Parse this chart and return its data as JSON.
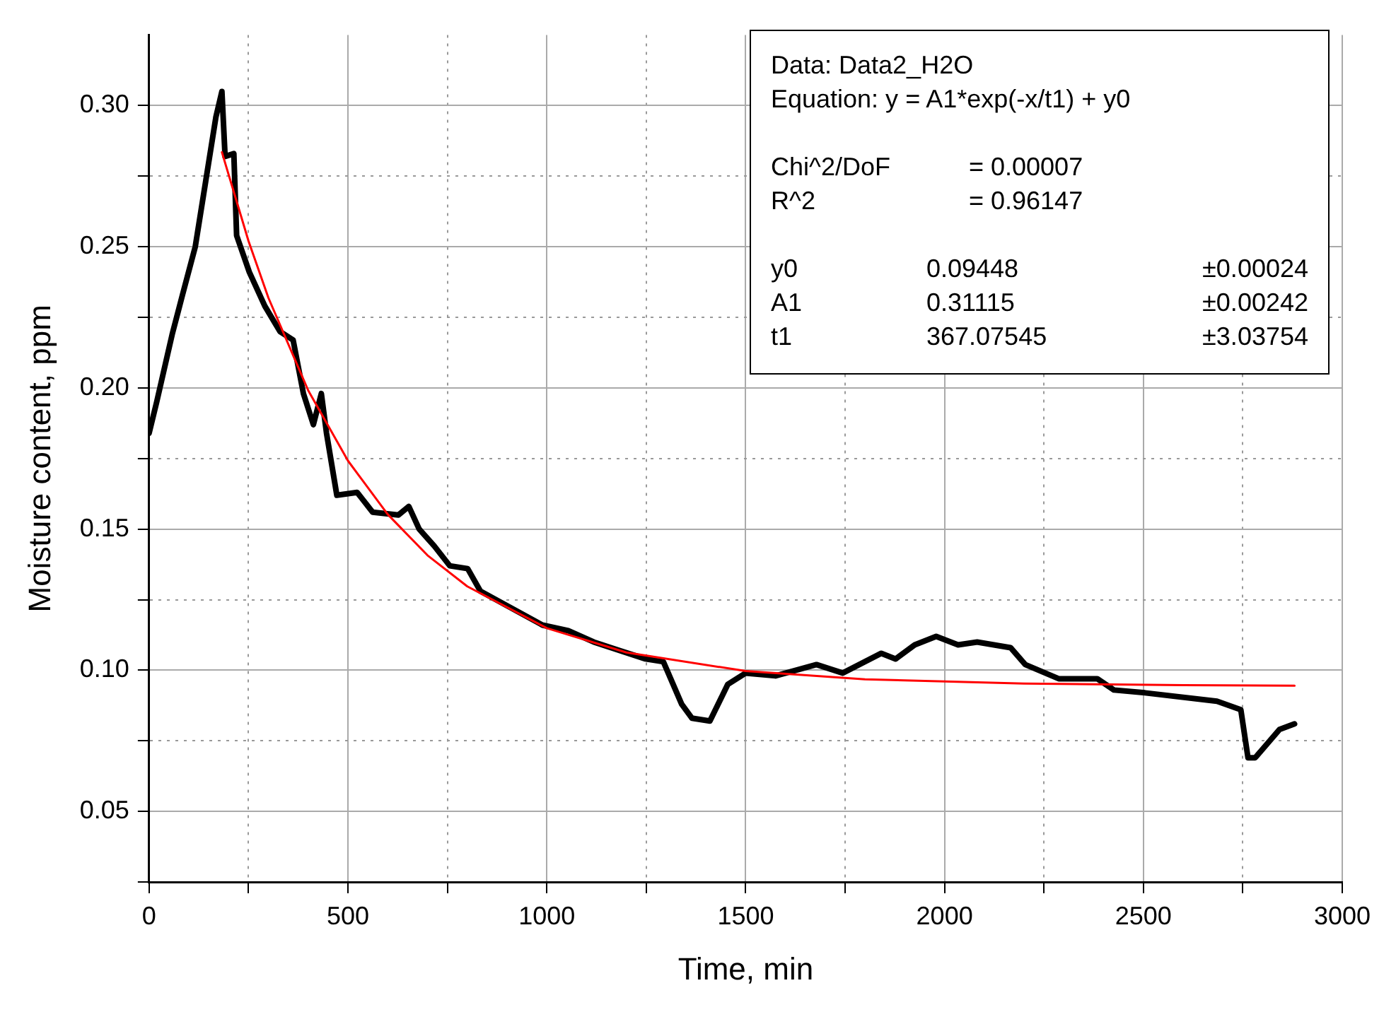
{
  "chart_data": {
    "type": "line",
    "xlabel": "Time, min",
    "ylabel": "Moisture content, ppm",
    "xlim": [
      0,
      3000
    ],
    "xticks": [
      0,
      {
        "value": 250,
        "label": null
      },
      500,
      {
        "value": 750,
        "label": null
      },
      1000,
      {
        "value": 1250,
        "label": null
      },
      1500,
      {
        "value": 1750,
        "label": null
      },
      2000,
      {
        "value": 2250,
        "label": null
      },
      2500,
      {
        "value": 2750,
        "label": null
      },
      3000
    ],
    "ylim": [
      0.025,
      0.325
    ],
    "yticks": [
      {
        "value": 0.025,
        "label": null
      },
      0.05,
      {
        "value": 0.075,
        "label": null
      },
      {
        "value": 0.1,
        "label": "0.10"
      },
      {
        "value": 0.125,
        "label": null
      },
      0.15,
      {
        "value": 0.175,
        "label": null
      },
      {
        "value": 0.2,
        "label": "0.20"
      },
      {
        "value": 0.225,
        "label": null
      },
      0.25,
      {
        "value": 0.275,
        "label": null
      },
      {
        "value": 0.3,
        "label": "0.30"
      }
    ],
    "grid": true,
    "legend": false,
    "series": [
      {
        "type": "line",
        "color": "#000000",
        "marker": "none",
        "x": [
          0,
          19,
          58,
          84,
          116,
          142,
          168,
          183,
          191,
          213,
          220,
          252,
          291,
          329,
          362,
          388,
          413,
          433,
          446,
          472,
          523,
          562,
          627,
          653,
          679,
          717,
          756,
          801,
          833,
          898,
          989,
          1054,
          1118,
          1183,
          1248,
          1293,
          1339,
          1365,
          1410,
          1455,
          1500,
          1575,
          1678,
          1744,
          1841,
          1877,
          1925,
          1979,
          2034,
          2082,
          2166,
          2203,
          2287,
          2384,
          2426,
          2504,
          2685,
          2745,
          2763,
          2781,
          2842,
          2880
        ],
        "values": [
          0.184,
          0.195,
          0.219,
          0.233,
          0.25,
          0.273,
          0.296,
          0.305,
          0.282,
          0.283,
          0.254,
          0.241,
          0.229,
          0.22,
          0.217,
          0.198,
          0.187,
          0.198,
          0.184,
          0.162,
          0.163,
          0.156,
          0.155,
          0.158,
          0.15,
          0.144,
          0.137,
          0.136,
          0.128,
          0.123,
          0.116,
          0.114,
          0.11,
          0.107,
          0.104,
          0.103,
          0.088,
          0.083,
          0.082,
          0.095,
          0.099,
          0.098,
          0.102,
          0.099,
          0.106,
          0.104,
          0.109,
          0.112,
          0.109,
          0.11,
          0.108,
          0.102,
          0.097,
          0.097,
          0.093,
          0.092,
          0.089,
          0.086,
          0.069,
          0.069,
          0.079,
          0.081
        ]
      },
      {
        "type": "line",
        "color": "#ff0000",
        "marker": "none",
        "x": [
          183,
          250,
          300,
          400,
          500,
          600,
          700,
          800,
          1000,
          1200,
          1500,
          1800,
          2200,
          2600,
          2880
        ],
        "values": [
          0.2835,
          0.252,
          0.2319,
          0.1991,
          0.1742,
          0.1552,
          0.1407,
          0.1297,
          0.1149,
          0.1063,
          0.0997,
          0.0968,
          0.0953,
          0.0947,
          0.0945
        ]
      }
    ],
    "annotations": [
      "Data: Data2_H2O",
      "Equation: y = A1*exp(-x/t1) + y0",
      "Chi^2/DoF\t= 0.00007",
      "R^2\t= 0.96147",
      "y0\t0.09448\t±0.00024",
      "A1\t0.31115\t±0.00242",
      "t1\t367.07545\t±3.03754"
    ]
  }
}
